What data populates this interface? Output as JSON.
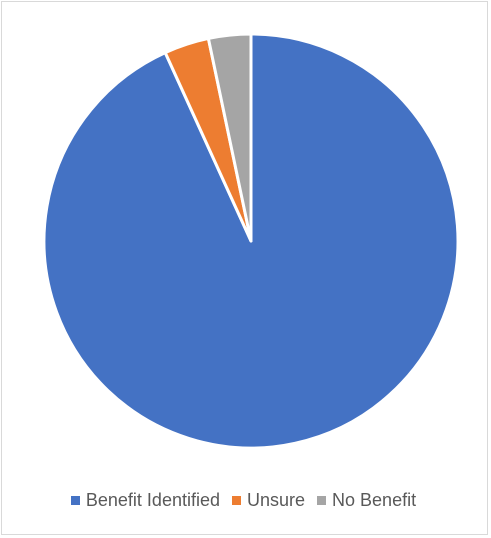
{
  "chart_data": {
    "type": "pie",
    "categories": [
      "Benefit Identified",
      "Unsure",
      "No Benefit"
    ],
    "values": [
      93.2,
      3.5,
      3.3
    ],
    "colors": [
      "#4472c4",
      "#ed7d31",
      "#a5a5a5"
    ],
    "title": "",
    "legend_position": "bottom"
  }
}
